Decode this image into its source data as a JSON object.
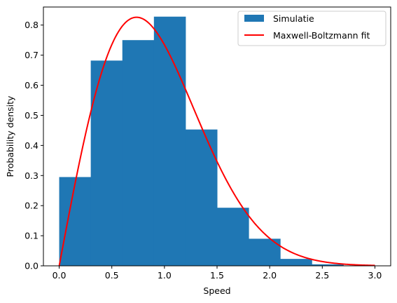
{
  "chart_data": {
    "type": "bar",
    "title": "",
    "xlabel": "Speed",
    "ylabel": "Probability density",
    "xlim": [
      -0.15,
      3.15
    ],
    "ylim": [
      0,
      0.86
    ],
    "xticks": [
      "0.0",
      "0.5",
      "1.0",
      "1.5",
      "2.0",
      "2.5",
      "3.0"
    ],
    "yticks": [
      "0.0",
      "0.1",
      "0.2",
      "0.3",
      "0.4",
      "0.5",
      "0.6",
      "0.7",
      "0.8"
    ],
    "grid": false,
    "legend_position": "top-right",
    "histogram": {
      "name": "Simulatie",
      "color": "#1f77b4",
      "bin_edges": [
        0.0,
        0.3,
        0.6,
        0.9,
        1.2,
        1.5,
        1.8,
        2.1,
        2.4,
        2.7
      ],
      "values": [
        0.295,
        0.682,
        0.75,
        0.828,
        0.453,
        0.193,
        0.09,
        0.023,
        0.005
      ]
    },
    "curve": {
      "name": "Maxwell-Boltzmann fit",
      "color": "#ff0000",
      "x_range": [
        0.0,
        3.0
      ],
      "peak": 0.826,
      "peak_x": 0.735
    }
  }
}
